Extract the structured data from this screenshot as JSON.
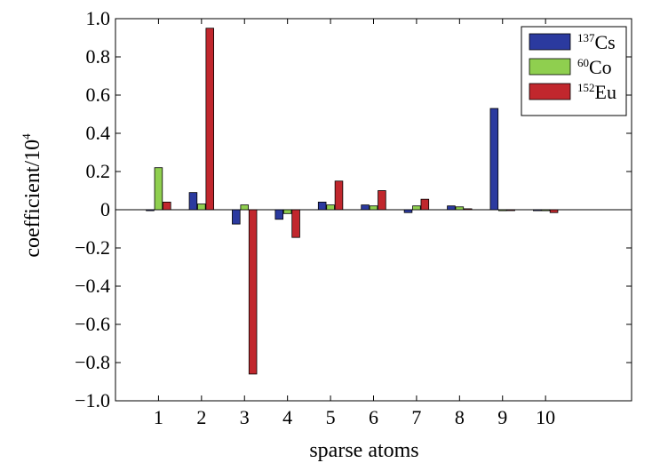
{
  "chart_data": {
    "type": "bar",
    "xlabel": "sparse atoms",
    "ylabel": "coefficient/10",
    "ylabel_sup": "4",
    "categories": [
      "1",
      "2",
      "3",
      "4",
      "5",
      "6",
      "7",
      "8",
      "9",
      "10"
    ],
    "xlim": [
      0,
      12
    ],
    "ylim": [
      -1.0,
      1.0
    ],
    "yticks": [
      "−1.0",
      "−0.8",
      "−0.6",
      "−0.4",
      "−0.2",
      "0",
      "0.2",
      "0.4",
      "0.6",
      "0.8",
      "1.0"
    ],
    "grid": false,
    "legend_position": "top-right",
    "series": [
      {
        "name": "Cs",
        "name_sup": "137",
        "color": "#2b3a9f",
        "values": [
          -0.005,
          0.09,
          -0.075,
          -0.05,
          0.04,
          0.025,
          -0.015,
          0.02,
          0.53,
          -0.005
        ]
      },
      {
        "name": "Co",
        "name_sup": "60",
        "color": "#8fcf4f",
        "values": [
          0.22,
          0.03,
          0.025,
          -0.02,
          0.025,
          0.02,
          0.02,
          0.015,
          -0.005,
          -0.005
        ]
      },
      {
        "name": "Eu",
        "name_sup": "152",
        "color": "#c1272d",
        "values": [
          0.04,
          0.95,
          -0.86,
          -0.145,
          0.15,
          0.1,
          0.055,
          0.005,
          0.0,
          -0.015
        ]
      }
    ]
  }
}
